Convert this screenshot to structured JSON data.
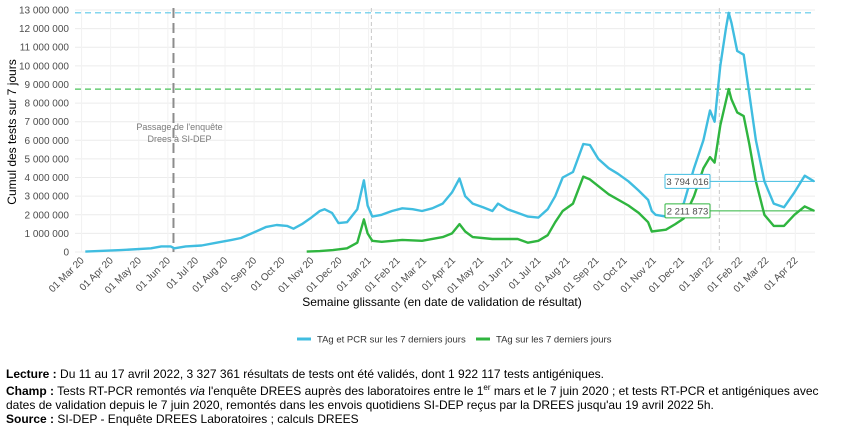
{
  "chart_data": {
    "type": "line",
    "ylabel": "Cumul des tests sur 7 jours",
    "xlabel": "Semaine glissante (en date de validation de résultat)",
    "xlim": [
      "2020-02-23",
      "2022-04-22"
    ],
    "ylim": [
      0,
      13000000
    ],
    "grid": true,
    "legend": "bottom",
    "yticks": [
      {
        "value": 0,
        "label": "0"
      },
      {
        "value": 1000000,
        "label": "1 000 000"
      },
      {
        "value": 2000000,
        "label": "2 000 000"
      },
      {
        "value": 3000000,
        "label": "3 000 000"
      },
      {
        "value": 4000000,
        "label": "4 000 000"
      },
      {
        "value": 5000000,
        "label": "5 000 000"
      },
      {
        "value": 6000000,
        "label": "6 000 000"
      },
      {
        "value": 7000000,
        "label": "7 000 000"
      },
      {
        "value": 8000000,
        "label": "8 000 000"
      },
      {
        "value": 9000000,
        "label": "9 000 000"
      },
      {
        "value": 10000000,
        "label": "10 000 000"
      },
      {
        "value": 11000000,
        "label": "11 000 000"
      },
      {
        "value": 12000000,
        "label": "12 000 000"
      },
      {
        "value": 13000000,
        "label": "13 000 000"
      }
    ],
    "xticks": [
      {
        "value": "2020-03-01",
        "label": "01 Mar 20"
      },
      {
        "value": "2020-04-01",
        "label": "01 Apr 20"
      },
      {
        "value": "2020-05-01",
        "label": "01 May 20"
      },
      {
        "value": "2020-06-01",
        "label": "01 Jun 20"
      },
      {
        "value": "2020-07-01",
        "label": "01 Jul 20"
      },
      {
        "value": "2020-08-01",
        "label": "01 Aug 20"
      },
      {
        "value": "2020-09-01",
        "label": "01 Sep 20"
      },
      {
        "value": "2020-10-01",
        "label": "01 Oct 20"
      },
      {
        "value": "2020-11-01",
        "label": "01 Nov 20"
      },
      {
        "value": "2020-12-01",
        "label": "01 Dec 20"
      },
      {
        "value": "2021-01-01",
        "label": "01 Jan 21"
      },
      {
        "value": "2021-02-01",
        "label": "01 Feb 21"
      },
      {
        "value": "2021-03-01",
        "label": "01 Mar 21"
      },
      {
        "value": "2021-04-01",
        "label": "01 Apr 21"
      },
      {
        "value": "2021-05-01",
        "label": "01 May 21"
      },
      {
        "value": "2021-06-01",
        "label": "01 Jun 21"
      },
      {
        "value": "2021-07-01",
        "label": "01 Jul 21"
      },
      {
        "value": "2021-08-01",
        "label": "01 Aug 21"
      },
      {
        "value": "2021-09-01",
        "label": "01 Sep 21"
      },
      {
        "value": "2021-10-01",
        "label": "01 Oct 21"
      },
      {
        "value": "2021-11-01",
        "label": "01 Nov 21"
      },
      {
        "value": "2021-12-01",
        "label": "01 Dec 21"
      },
      {
        "value": "2022-01-01",
        "label": "01 Jan 22"
      },
      {
        "value": "2022-02-01",
        "label": "01 Feb 22"
      },
      {
        "value": "2022-03-01",
        "label": "01 Mar 22"
      },
      {
        "value": "2022-04-01",
        "label": "01 Apr 22"
      }
    ],
    "series": [
      {
        "name": "TAg et PCR sur les 7 derniers jours",
        "color": "#40bde0",
        "x": [
          "2020-03-05",
          "2020-04-12",
          "2020-05-14",
          "2020-05-25",
          "2020-06-04",
          "2020-06-08",
          "2020-06-20",
          "2020-07-07",
          "2020-07-23",
          "2020-08-08",
          "2020-08-18",
          "2020-09-03",
          "2020-09-14",
          "2020-09-25",
          "2020-10-06",
          "2020-10-13",
          "2020-10-22",
          "2020-11-01",
          "2020-11-10",
          "2020-11-15",
          "2020-11-23",
          "2020-11-30",
          "2020-12-09",
          "2020-12-20",
          "2020-12-27",
          "2020-12-31",
          "2021-01-05",
          "2021-01-15",
          "2021-01-26",
          "2021-02-06",
          "2021-02-17",
          "2021-02-27",
          "2021-03-10",
          "2021-03-21",
          "2021-03-31",
          "2021-04-08",
          "2021-04-14",
          "2021-04-22",
          "2021-05-03",
          "2021-05-13",
          "2021-05-19",
          "2021-05-29",
          "2021-06-09",
          "2021-06-20",
          "2021-07-01",
          "2021-07-11",
          "2021-07-19",
          "2021-07-27",
          "2021-08-07",
          "2021-08-18",
          "2021-08-25",
          "2021-09-03",
          "2021-09-14",
          "2021-09-24",
          "2021-10-05",
          "2021-10-16",
          "2021-10-26",
          "2021-10-30",
          "2021-11-03",
          "2021-11-14",
          "2021-11-24",
          "2021-12-03",
          "2021-12-14",
          "2021-12-24",
          "2021-12-31",
          "2022-01-05",
          "2022-01-11",
          "2022-01-17",
          "2022-01-20",
          "2022-01-23",
          "2022-01-29",
          "2022-02-05",
          "2022-02-11",
          "2022-02-18",
          "2022-02-27",
          "2022-03-09",
          "2022-03-20",
          "2022-03-31",
          "2022-04-11",
          "2022-04-21"
        ],
        "values": [
          20000,
          100000,
          200000,
          300000,
          300000,
          200000,
          300000,
          350000,
          500000,
          650000,
          750000,
          1100000,
          1350000,
          1450000,
          1400000,
          1250000,
          1500000,
          1850000,
          2200000,
          2300000,
          2100000,
          1550000,
          1600000,
          2300000,
          3850000,
          2500000,
          1900000,
          2000000,
          2200000,
          2350000,
          2300000,
          2200000,
          2350000,
          2600000,
          3200000,
          3950000,
          3000000,
          2600000,
          2400000,
          2200000,
          2600000,
          2300000,
          2100000,
          1900000,
          1850000,
          2300000,
          3000000,
          4000000,
          4300000,
          5800000,
          5750000,
          5000000,
          4500000,
          4200000,
          3800000,
          3300000,
          2800000,
          2200000,
          2000000,
          1900000,
          2300000,
          2600000,
          4500000,
          6000000,
          7600000,
          7000000,
          10000000,
          12000000,
          12850000,
          12300000,
          10800000,
          10600000,
          8500000,
          6000000,
          3800000,
          2600000,
          2400000,
          3200000,
          4100000,
          3794016
        ]
      },
      {
        "name": "TAg sur les 7 derniers jours",
        "color": "#2fb53f",
        "x": [
          "2020-10-27",
          "2020-11-10",
          "2020-11-24",
          "2020-12-09",
          "2020-12-20",
          "2020-12-27",
          "2020-12-31",
          "2021-01-05",
          "2021-01-15",
          "2021-02-06",
          "2021-02-27",
          "2021-03-21",
          "2021-03-31",
          "2021-04-08",
          "2021-04-14",
          "2021-04-22",
          "2021-05-13",
          "2021-06-09",
          "2021-06-20",
          "2021-07-01",
          "2021-07-11",
          "2021-07-19",
          "2021-07-27",
          "2021-08-07",
          "2021-08-18",
          "2021-08-25",
          "2021-09-14",
          "2021-10-05",
          "2021-10-16",
          "2021-10-26",
          "2021-10-30",
          "2021-11-14",
          "2021-11-24",
          "2021-12-03",
          "2021-12-14",
          "2021-12-24",
          "2021-12-31",
          "2022-01-05",
          "2022-01-11",
          "2022-01-20",
          "2022-01-23",
          "2022-01-29",
          "2022-02-05",
          "2022-02-11",
          "2022-02-18",
          "2022-02-27",
          "2022-03-09",
          "2022-03-20",
          "2022-03-31",
          "2022-04-11",
          "2022-04-21"
        ],
        "values": [
          20000,
          50000,
          100000,
          200000,
          500000,
          1750000,
          1000000,
          600000,
          550000,
          650000,
          600000,
          800000,
          1000000,
          1500000,
          1100000,
          800000,
          700000,
          700000,
          500000,
          600000,
          900000,
          1600000,
          2200000,
          2600000,
          4050000,
          3900000,
          3100000,
          2500000,
          2100000,
          1600000,
          1100000,
          1200000,
          1500000,
          1800000,
          3000000,
          4500000,
          5100000,
          4800000,
          6800000,
          8750000,
          8200000,
          7500000,
          7300000,
          5800000,
          3800000,
          2000000,
          1400000,
          1400000,
          2000000,
          2450000,
          2211873
        ]
      }
    ],
    "reference_lines": [
      {
        "axis": "y",
        "value": 12850000,
        "color": "#5bc8e8"
      },
      {
        "axis": "y",
        "value": 8750000,
        "color": "#49c25a"
      },
      {
        "axis": "x",
        "value": "2020-06-07",
        "color": "#8c8c8c"
      },
      {
        "axis": "x",
        "value": "2021-01-04",
        "color": "#c8c8c8"
      },
      {
        "axis": "x",
        "value": "2022-01-10",
        "color": "#c8c8c8"
      }
    ],
    "annotations": [
      {
        "x": "2020-06-07",
        "lines": [
          "Passage de l'enquête",
          "Drees à SI-DEP"
        ]
      }
    ],
    "end_labels": [
      {
        "value": 3794016,
        "label": "3 794 016",
        "color": "#40bde0"
      },
      {
        "value": 2211873,
        "label": "2 211 873",
        "color": "#2fb53f"
      }
    ]
  },
  "notes": [
    {
      "label": "Lecture :",
      "parts": [
        " Du 11 au 17 avril 2022, 3 327 361 résultats de tests ont été validés, dont 1 922 117 tests antigéniques."
      ]
    },
    {
      "label": "Champ :",
      "parts": [
        " Tests RT-PCR remontés ",
        "via",
        " l'enquête DREES auprès des laboratoires entre le 1",
        "er",
        " mars et le 7 juin 2020 ; et tests RT-PCR et antigéniques avec dates de validation depuis le 7 juin 2020, remontés dans les envois quotidiens SI-DEP reçus par la DREES jusqu'au 19 avril 2022 5h."
      ]
    },
    {
      "label": "Source :",
      "parts": [
        " SI-DEP - Enquête DREES Laboratoires ; calculs DREES"
      ]
    }
  ]
}
